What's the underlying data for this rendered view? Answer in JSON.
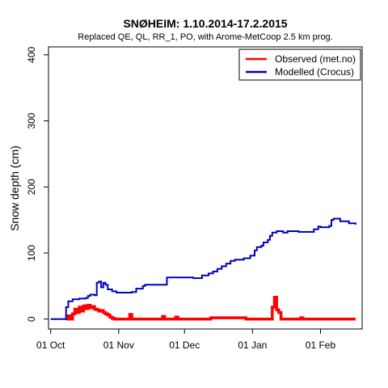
{
  "chart_data": {
    "type": "line",
    "title": "SNØHEIM: 1.10.2014-17.2.2015",
    "subtitle": "Replaced QE, QL, RR_1, PO,  with Arome-MetCoop 2.5 km prog.",
    "xlabel": "",
    "ylabel": "Snow depth (cm)",
    "xlim": [
      "2014-09-30",
      "2015-02-20"
    ],
    "ylim": [
      -15,
      412
    ],
    "x_ticks": [
      {
        "date": "2014-10-01",
        "label": "01 Oct"
      },
      {
        "date": "2014-11-01",
        "label": "01 Nov"
      },
      {
        "date": "2014-12-01",
        "label": "01 Dec"
      },
      {
        "date": "2015-01-01",
        "label": "01 Jan"
      },
      {
        "date": "2015-02-01",
        "label": "01 Feb"
      }
    ],
    "y_ticks": [
      "0",
      "100",
      "200",
      "300",
      "400"
    ],
    "grid": false,
    "legend_position": "top-right",
    "series": [
      {
        "name": "Observed (met.no)",
        "color": "#ff0000",
        "style": "step",
        "points": [
          [
            "2014-10-08",
            0
          ],
          [
            "2014-10-09",
            5
          ],
          [
            "2014-10-10",
            0
          ],
          [
            "2014-10-11",
            8
          ],
          [
            "2014-10-12",
            15
          ],
          [
            "2014-10-13",
            10
          ],
          [
            "2014-10-14",
            18
          ],
          [
            "2014-10-15",
            12
          ],
          [
            "2014-10-16",
            20
          ],
          [
            "2014-10-17",
            16
          ],
          [
            "2014-10-18",
            21
          ],
          [
            "2014-10-19",
            17
          ],
          [
            "2014-10-20",
            19
          ],
          [
            "2014-10-21",
            15
          ],
          [
            "2014-10-22",
            14
          ],
          [
            "2014-10-23",
            12
          ],
          [
            "2014-10-24",
            13
          ],
          [
            "2014-10-25",
            10
          ],
          [
            "2014-10-26",
            8
          ],
          [
            "2014-10-27",
            6
          ],
          [
            "2014-10-28",
            3
          ],
          [
            "2014-10-29",
            1
          ],
          [
            "2014-10-30",
            0
          ],
          [
            "2014-11-05",
            0
          ],
          [
            "2014-11-06",
            7
          ],
          [
            "2014-11-07",
            0
          ],
          [
            "2014-11-20",
            0
          ],
          [
            "2014-11-21",
            4
          ],
          [
            "2014-11-22",
            0
          ],
          [
            "2014-11-26",
            0
          ],
          [
            "2014-11-27",
            3
          ],
          [
            "2014-11-28",
            0
          ],
          [
            "2014-12-12",
            0
          ],
          [
            "2014-12-13",
            2
          ],
          [
            "2014-12-28",
            2
          ],
          [
            "2014-12-29",
            0
          ],
          [
            "2015-01-09",
            0
          ],
          [
            "2015-01-10",
            18
          ],
          [
            "2015-01-11",
            33
          ],
          [
            "2015-01-12",
            14
          ],
          [
            "2015-01-13",
            10
          ],
          [
            "2015-01-14",
            0
          ],
          [
            "2015-01-22",
            0
          ],
          [
            "2015-01-23",
            2
          ],
          [
            "2015-01-24",
            0
          ],
          [
            "2015-02-17",
            0
          ]
        ]
      },
      {
        "name": "Modelled (Crocus)",
        "color": "#0000bb",
        "style": "step",
        "points": [
          [
            "2014-10-01",
            0
          ],
          [
            "2014-10-07",
            0
          ],
          [
            "2014-10-08",
            18
          ],
          [
            "2014-10-09",
            27
          ],
          [
            "2014-10-11",
            30
          ],
          [
            "2014-10-14",
            31
          ],
          [
            "2014-10-17",
            32
          ],
          [
            "2014-10-18",
            35
          ],
          [
            "2014-10-19",
            37
          ],
          [
            "2014-10-21",
            36
          ],
          [
            "2014-10-22",
            55
          ],
          [
            "2014-10-23",
            57
          ],
          [
            "2014-10-24",
            48
          ],
          [
            "2014-10-25",
            55
          ],
          [
            "2014-10-26",
            52
          ],
          [
            "2014-10-27",
            45
          ],
          [
            "2014-10-29",
            42
          ],
          [
            "2014-10-31",
            40
          ],
          [
            "2014-11-07",
            41
          ],
          [
            "2014-11-09",
            46
          ],
          [
            "2014-11-12",
            50
          ],
          [
            "2014-11-13",
            52
          ],
          [
            "2014-11-22",
            52
          ],
          [
            "2014-11-23",
            63
          ],
          [
            "2014-12-03",
            63
          ],
          [
            "2014-12-05",
            62
          ],
          [
            "2014-12-09",
            66
          ],
          [
            "2014-12-12",
            69
          ],
          [
            "2014-12-14",
            72
          ],
          [
            "2014-12-16",
            76
          ],
          [
            "2014-12-18",
            80
          ],
          [
            "2014-12-20",
            84
          ],
          [
            "2014-12-22",
            88
          ],
          [
            "2014-12-24",
            90
          ],
          [
            "2014-12-27",
            90
          ],
          [
            "2014-12-28",
            92
          ],
          [
            "2014-12-31",
            96
          ],
          [
            "2015-01-02",
            104
          ],
          [
            "2015-01-03",
            109
          ],
          [
            "2015-01-05",
            111
          ],
          [
            "2015-01-06",
            116
          ],
          [
            "2015-01-08",
            120
          ],
          [
            "2015-01-09",
            126
          ],
          [
            "2015-01-10",
            131
          ],
          [
            "2015-01-12",
            133
          ],
          [
            "2015-01-15",
            131
          ],
          [
            "2015-01-17",
            133
          ],
          [
            "2015-01-20",
            133
          ],
          [
            "2015-01-22",
            132
          ],
          [
            "2015-01-28",
            132
          ],
          [
            "2015-01-29",
            136
          ],
          [
            "2015-01-31",
            140
          ],
          [
            "2015-02-01",
            139
          ],
          [
            "2015-02-05",
            141
          ],
          [
            "2015-02-06",
            150
          ],
          [
            "2015-02-07",
            152
          ],
          [
            "2015-02-10",
            148
          ],
          [
            "2015-02-14",
            145
          ],
          [
            "2015-02-17",
            143
          ]
        ]
      }
    ]
  }
}
